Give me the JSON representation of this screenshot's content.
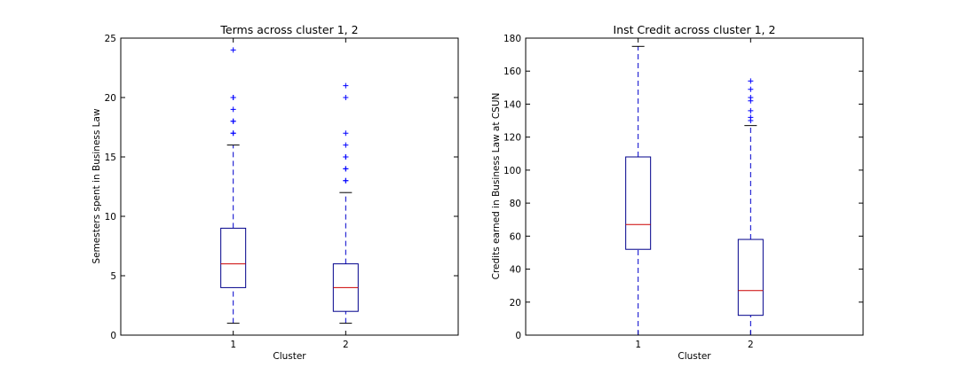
{
  "chart_data": [
    {
      "type": "box",
      "title": "Terms across cluster 1, 2",
      "xlabel": "Cluster",
      "ylabel": "Semesters spent in Business Law",
      "ylim": [
        0,
        25
      ],
      "yticks": [
        0,
        5,
        10,
        15,
        20,
        25
      ],
      "categories": [
        "1",
        "2"
      ],
      "boxes": [
        {
          "category": "1",
          "whisker_low": 1,
          "q1": 4,
          "median": 6,
          "q3": 9,
          "whisker_high": 16,
          "outliers": [
            17,
            17,
            18,
            18,
            19,
            20,
            20,
            24
          ]
        },
        {
          "category": "2",
          "whisker_low": 1,
          "q1": 2,
          "median": 4,
          "q3": 6,
          "whisker_high": 12,
          "outliers": [
            13,
            13,
            14,
            14,
            15,
            15,
            16,
            17,
            20,
            21
          ]
        }
      ],
      "colors": {
        "box": "#00008b",
        "median": "#cc0000",
        "whisker": "#0000cc",
        "cap": "#000000",
        "outlier": "#0000ff"
      },
      "grid": false
    },
    {
      "type": "box",
      "title": "Inst Credit across cluster 1, 2",
      "xlabel": "Cluster",
      "ylabel": "Credits earned in Business Law at CSUN",
      "ylim": [
        0,
        180
      ],
      "yticks": [
        0,
        20,
        40,
        60,
        80,
        100,
        120,
        140,
        160,
        180
      ],
      "categories": [
        "1",
        "2"
      ],
      "boxes": [
        {
          "category": "1",
          "whisker_low": 0,
          "q1": 52,
          "median": 67,
          "q3": 108,
          "whisker_high": 175,
          "outliers": []
        },
        {
          "category": "2",
          "whisker_low": 0,
          "q1": 12,
          "median": 27,
          "q3": 58,
          "whisker_high": 127,
          "outliers": [
            130,
            132,
            136,
            142,
            144,
            149,
            154
          ]
        }
      ],
      "colors": {
        "box": "#00008b",
        "median": "#cc0000",
        "whisker": "#0000cc",
        "cap": "#000000",
        "outlier": "#0000ff"
      },
      "grid": false
    }
  ]
}
